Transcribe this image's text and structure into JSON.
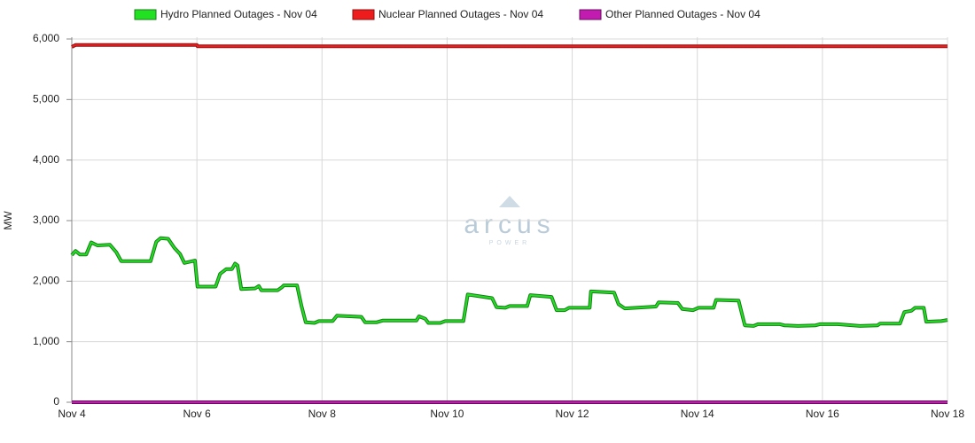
{
  "chart_data": {
    "type": "line",
    "y_label": "MW",
    "watermark": "arcus",
    "watermark_sub": "POWER",
    "xlim": [
      4,
      18
    ],
    "xticks": [
      {
        "value": 4,
        "label": "Nov 4"
      },
      {
        "value": 6,
        "label": "Nov 6"
      },
      {
        "value": 8,
        "label": "Nov 8"
      },
      {
        "value": 10,
        "label": "Nov 10"
      },
      {
        "value": 12,
        "label": "Nov 12"
      },
      {
        "value": 14,
        "label": "Nov 14"
      },
      {
        "value": 16,
        "label": "Nov 16"
      },
      {
        "value": 18,
        "label": "Nov 18"
      }
    ],
    "ylim": [
      0,
      6000
    ],
    "yticks": [
      0,
      {
        "value": 1000,
        "label": "1,000"
      },
      {
        "value": 2000,
        "label": "2,000"
      },
      {
        "value": 3000,
        "label": "3,000"
      },
      {
        "value": 4000,
        "label": "4,000"
      },
      {
        "value": 5000,
        "label": "5,000"
      },
      {
        "value": 6000,
        "label": "6,000"
      }
    ],
    "grid": true,
    "legend_position": "top",
    "series": [
      {
        "name": "Hydro Planned Outages - Nov 04",
        "color": "#22e022",
        "outline": "#1a7a1a",
        "x": [
          4.0,
          4.06,
          4.13,
          4.23,
          4.31,
          4.41,
          4.61,
          4.71,
          4.79,
          5.26,
          5.35,
          5.42,
          5.54,
          5.64,
          5.73,
          5.8,
          5.97,
          6.01,
          6.3,
          6.37,
          6.47,
          6.56,
          6.61,
          6.65,
          6.71,
          6.93,
          6.99,
          7.03,
          7.29,
          7.36,
          7.39,
          7.6,
          7.67,
          7.74,
          7.88,
          7.95,
          8.17,
          8.24,
          8.63,
          8.69,
          8.87,
          8.97,
          9.51,
          9.55,
          9.65,
          9.7,
          9.89,
          9.97,
          10.26,
          10.33,
          10.72,
          10.79,
          10.93,
          11.0,
          11.28,
          11.33,
          11.67,
          11.75,
          11.88,
          11.95,
          12.28,
          12.3,
          12.67,
          12.74,
          12.84,
          13.34,
          13.38,
          13.69,
          13.76,
          13.93,
          14.02,
          14.26,
          14.3,
          14.66,
          14.76,
          14.9,
          14.97,
          15.32,
          15.39,
          15.61,
          15.89,
          15.96,
          16.24,
          16.6,
          16.88,
          16.92,
          17.24,
          17.31,
          17.42,
          17.48,
          17.62,
          17.66,
          17.9,
          18.0
        ],
        "values": [
          2430,
          2500,
          2440,
          2440,
          2640,
          2590,
          2600,
          2480,
          2330,
          2330,
          2650,
          2710,
          2700,
          2550,
          2450,
          2300,
          2340,
          1910,
          1910,
          2120,
          2200,
          2200,
          2290,
          2260,
          1870,
          1880,
          1920,
          1850,
          1850,
          1900,
          1930,
          1930,
          1600,
          1320,
          1310,
          1340,
          1340,
          1430,
          1410,
          1320,
          1320,
          1350,
          1350,
          1420,
          1380,
          1310,
          1310,
          1340,
          1340,
          1780,
          1720,
          1570,
          1560,
          1590,
          1590,
          1770,
          1740,
          1520,
          1520,
          1560,
          1560,
          1830,
          1810,
          1620,
          1550,
          1580,
          1650,
          1640,
          1540,
          1520,
          1560,
          1560,
          1690,
          1680,
          1270,
          1260,
          1290,
          1290,
          1270,
          1260,
          1270,
          1290,
          1290,
          1260,
          1270,
          1300,
          1300,
          1490,
          1510,
          1560,
          1560,
          1330,
          1340,
          1360
        ]
      },
      {
        "name": "Nuclear Planned Outages - Nov 04",
        "color": "#ee1c1c",
        "outline": "#8a1010",
        "x": [
          4.0,
          4.06,
          6.0,
          6.01,
          18.0
        ],
        "values": [
          5870,
          5900,
          5900,
          5880,
          5880
        ]
      },
      {
        "name": "Other Planned Outages - Nov 04",
        "color": "#c21bb0",
        "outline": "#6a0f60",
        "x": [
          4.0,
          18.0
        ],
        "values": [
          0,
          0
        ]
      }
    ]
  }
}
